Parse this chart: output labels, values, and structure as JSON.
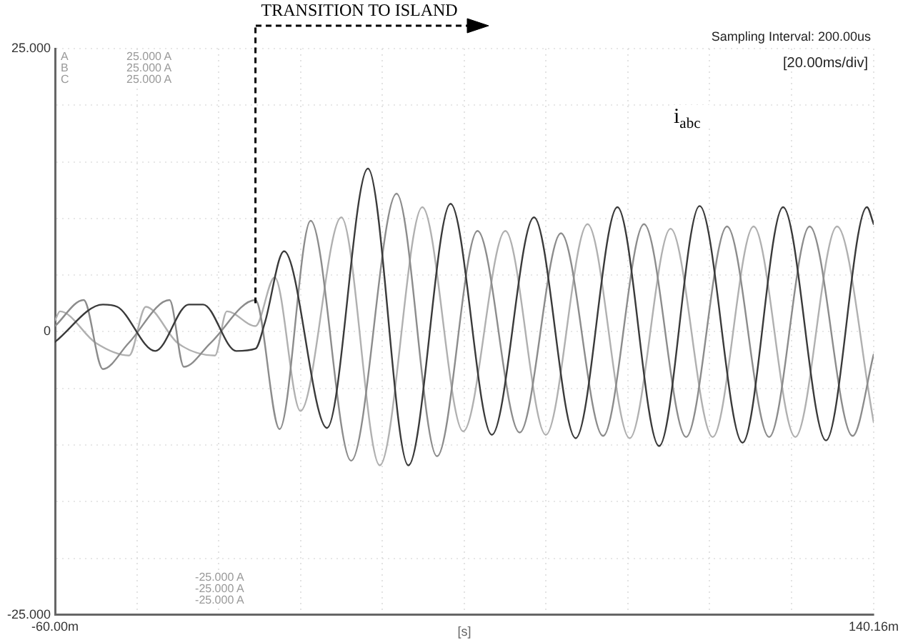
{
  "chart_data": {
    "type": "line",
    "xlabel": "[s]",
    "xlim": [
      -60,
      140.16
    ],
    "xticks": [
      {
        "value": -60,
        "label": "-60.00m"
      },
      {
        "value": -40,
        "label": null
      },
      {
        "value": -20,
        "label": null
      },
      {
        "value": 0,
        "label": null
      },
      {
        "value": 20,
        "label": null
      },
      {
        "value": 40,
        "label": null
      },
      {
        "value": 60,
        "label": null
      },
      {
        "value": 80,
        "label": null
      },
      {
        "value": 100,
        "label": null
      },
      {
        "value": 120,
        "label": null
      },
      {
        "value": 140.16,
        "label": "140.16m"
      }
    ],
    "ylim": [
      -25,
      25
    ],
    "yticks": [
      {
        "value": -25,
        "label": "-25.000"
      },
      {
        "value": -20,
        "label": null
      },
      {
        "value": -15,
        "label": null
      },
      {
        "value": -10,
        "label": null
      },
      {
        "value": -5,
        "label": null
      },
      0,
      {
        "value": 5,
        "label": null
      },
      {
        "value": 10,
        "label": null
      },
      {
        "value": 15,
        "label": null
      },
      {
        "value": 20,
        "label": null
      },
      {
        "value": 25,
        "label": "25.000"
      }
    ],
    "grid": true,
    "line_style": "solid",
    "series": [
      {
        "color": "#3a3a3a",
        "x": [
          -60,
          -48.3,
          -44.8,
          -35.5,
          -27.3,
          -23.8,
          -15.7,
          -11,
          -8.7,
          -4,
          6.5,
          16.5,
          26.4,
          36.7,
          46.8,
          57.1,
          67.3,
          77.5,
          87.7,
          97.6,
          108.1,
          118,
          128.5,
          138.5,
          140.16
        ],
        "values": [
          -0.9,
          2.4,
          2.2,
          -1.7,
          2.4,
          2.4,
          -1.7,
          -1.5,
          0.8,
          7.1,
          -8.5,
          14.4,
          -11.8,
          11.3,
          -9.1,
          10.1,
          -9.4,
          11,
          -10.1,
          11.1,
          -9.8,
          11,
          -9.6,
          11,
          9.5
        ]
      },
      {
        "color": "#8c8c8c",
        "x": [
          -60,
          -53,
          -48.3,
          -42,
          -32,
          -28.5,
          -22,
          -11,
          -5.1,
          2.5,
          12.4,
          23.5,
          33.4,
          43.3,
          53.6,
          63.7,
          74,
          84,
          94.3,
          104.3,
          114.6,
          124.5,
          135,
          140.16
        ],
        "values": [
          0.5,
          2.8,
          -3.3,
          -1,
          2.8,
          -3.1,
          -1,
          2.8,
          -8.6,
          9.8,
          -11.4,
          12.2,
          -11,
          8.9,
          -8.9,
          8.7,
          -9.2,
          9.5,
          -9.3,
          9.3,
          -9.3,
          9.3,
          -9.2,
          -2
        ]
      },
      {
        "color": "#b0b0b0",
        "x": [
          -60,
          -58.8,
          -50,
          -41.9,
          -37.8,
          -30,
          -20.9,
          -18,
          -11,
          -6.3,
          0,
          10,
          19.4,
          29.8,
          39.8,
          50.1,
          60,
          70.2,
          80.5,
          90.5,
          100.8,
          110.8,
          121,
          131.2,
          140.16
        ],
        "values": [
          1,
          1.8,
          -1,
          -2.1,
          2.2,
          -1,
          -2.1,
          1.8,
          0.5,
          4.8,
          -7,
          10.1,
          -11.8,
          11,
          -8.8,
          8.9,
          -9.1,
          9.5,
          -9.4,
          9.1,
          -9.3,
          9.3,
          -9.3,
          9.3,
          -8
        ]
      }
    ],
    "ref_lines": [
      {
        "axis": "x",
        "value": -11,
        "label": "TRANSITION TO ISLAND",
        "line_style": "dashed",
        "color": "#000000"
      }
    ],
    "annotations": [
      "A",
      "B",
      "C",
      "25.000 A",
      "25.000 A",
      "25.000 A",
      "-25.000 A",
      "-25.000 A",
      "-25.000 A",
      "Sampling Interval: 200.00us",
      "[20.00ms/div]",
      "i$_{abc}$"
    ]
  }
}
